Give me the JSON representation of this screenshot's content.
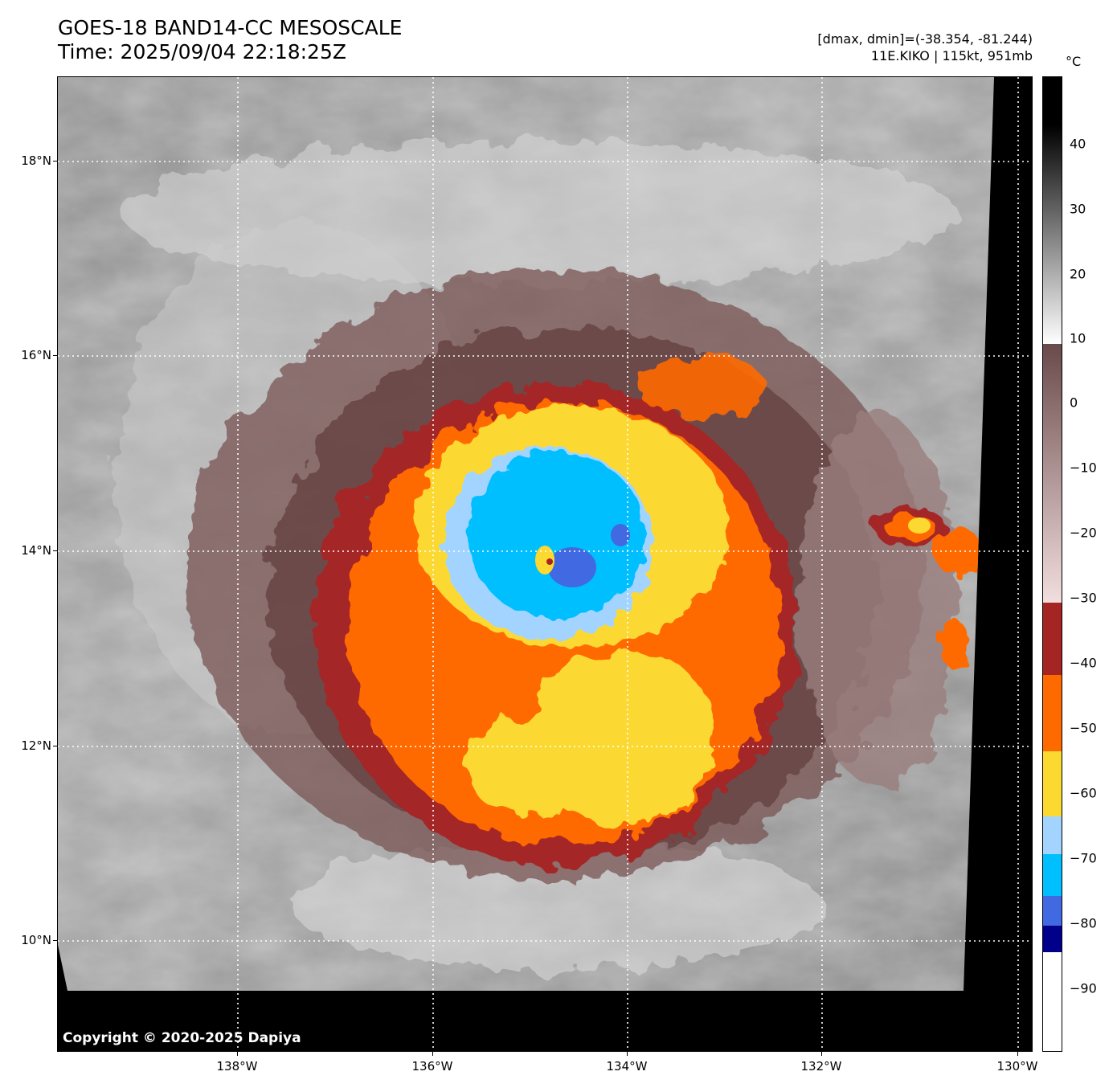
{
  "header": {
    "title_line1": "GOES-18 BAND14-CC MESOSCALE",
    "title_line2": "Time: 2025/09/04 22:18:25Z",
    "info_line1": "[dmax, dmin]=(-38.354, -81.244)",
    "info_line2": "11E.KIKO | 115kt, 951mb"
  },
  "map": {
    "copyright": "Copyright © 2020-2025 Dapiya",
    "lat_labels": [
      "18°N",
      "16°N",
      "14°N",
      "12°N",
      "10°N"
    ],
    "lon_labels": [
      "138°W",
      "136°W",
      "134°W",
      "132°W",
      "130°W"
    ]
  },
  "colorbar": {
    "unit": "°C",
    "labels": [
      "40",
      "30",
      "20",
      "10",
      "0",
      "−10",
      "−20",
      "−30",
      "−40",
      "−50",
      "−60",
      "−70",
      "−80",
      "−90"
    ],
    "colors": {
      "white": "#ffffff",
      "navy": "#00008b",
      "royal_blue": "#4169e1",
      "deep_sky_blue": "#00bfff",
      "light_sky_blue": "#a3d4ff",
      "gold": "#fcd930",
      "orange": "#ff6a00",
      "brown_red": "#a52525",
      "pink_low": "#f2dede",
      "brown_high": "#6a4a4a"
    }
  }
}
